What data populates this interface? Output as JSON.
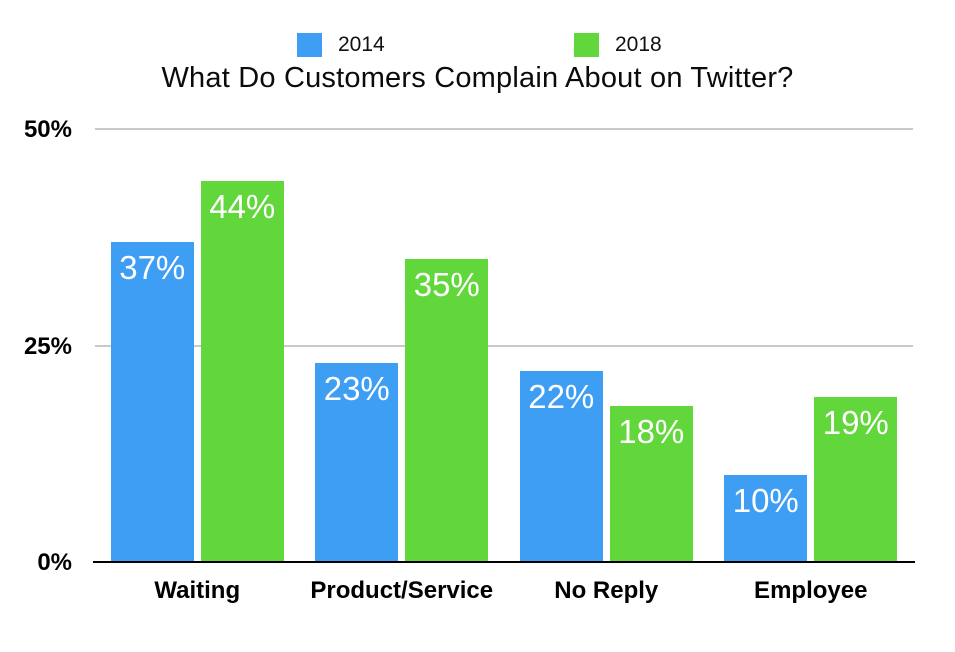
{
  "title": "What Do Customers Complain About on Twitter?",
  "legend": {
    "position": "top",
    "items": [
      {
        "label": "2014",
        "color": "#3e9ef3"
      },
      {
        "label": "2018",
        "color": "#61d73c"
      }
    ]
  },
  "chart_data": {
    "type": "bar",
    "title": "What Do Customers Complain About on Twitter?",
    "categories": [
      "Waiting",
      "Product/Service",
      "No Reply",
      "Employee"
    ],
    "series": [
      {
        "name": "2014",
        "color": "#3e9ef3",
        "values": [
          37,
          23,
          22,
          10
        ]
      },
      {
        "name": "2018",
        "color": "#61d73c",
        "values": [
          44,
          35,
          18,
          19
        ]
      }
    ],
    "value_label_format": "{v}%",
    "value_label_color": "#ffffff",
    "xlabel": "",
    "ylabel": "",
    "ylim": [
      0,
      50
    ],
    "yticks": [
      0,
      25,
      50
    ],
    "ytick_labels": [
      "0%",
      "25%",
      "50%"
    ],
    "grid": "horizontal",
    "gridline_color": "#c9c9c9",
    "axis_line_color": "#000000",
    "legend_position": "top"
  }
}
